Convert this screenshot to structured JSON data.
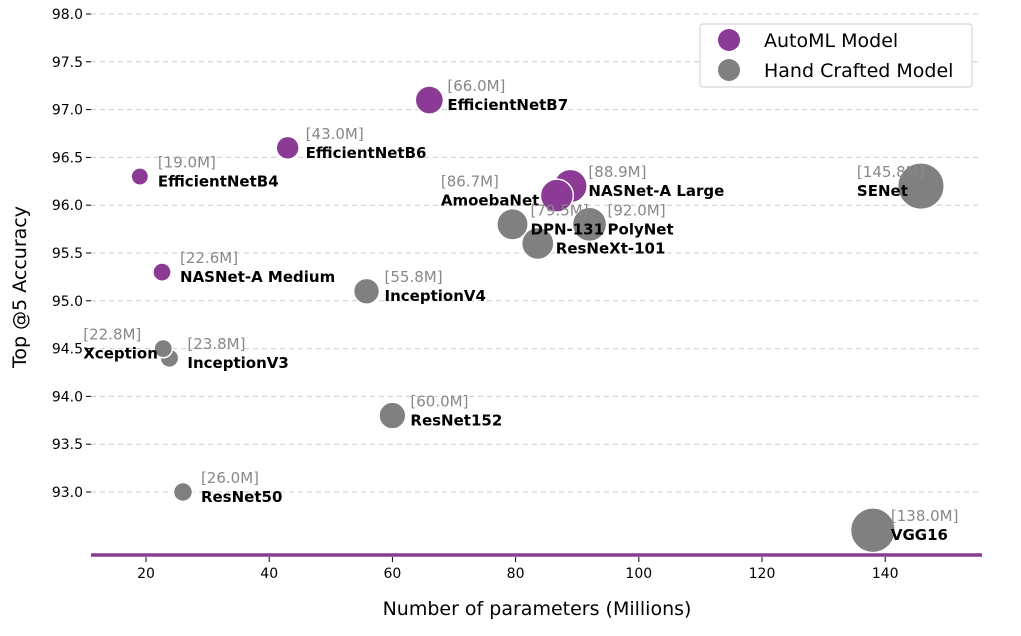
{
  "chart_data": {
    "type": "scatter",
    "xlabel": "Number of parameters (Millions)",
    "ylabel": "Top @5 Accuracy",
    "xlim": [
      10,
      155
    ],
    "ylim": [
      92.35,
      98.0
    ],
    "x_ticks": [
      20,
      40,
      60,
      80,
      100,
      120,
      140
    ],
    "y_ticks": [
      93.0,
      93.5,
      94.0,
      94.5,
      95.0,
      95.5,
      96.0,
      96.5,
      97.0,
      97.5,
      98.0
    ],
    "grid": "horizontal-dashed",
    "legend_position": "top-right",
    "colors": {
      "automl": "#8b3a96",
      "hand": "#808080",
      "baseline": "#8b3a96"
    },
    "series": [
      {
        "name": "AutoML Model",
        "points": [
          {
            "model": "EfficientNetB4",
            "params": 19.0,
            "accuracy": 96.3,
            "param_label": "[19.0M]"
          },
          {
            "model": "EfficientNetB6",
            "params": 43.0,
            "accuracy": 96.6,
            "param_label": "[43.0M]"
          },
          {
            "model": "EfficientNetB7",
            "params": 66.0,
            "accuracy": 97.1,
            "param_label": "[66.0M]"
          },
          {
            "model": "NASNet-A Medium",
            "params": 22.6,
            "accuracy": 95.3,
            "param_label": "[22.6M]"
          },
          {
            "model": "AmoebaNet",
            "params": 86.7,
            "accuracy": 96.1,
            "param_label": "[86.7M]"
          },
          {
            "model": "NASNet-A Large",
            "params": 88.9,
            "accuracy": 96.2,
            "param_label": "[88.9M]"
          }
        ]
      },
      {
        "name": "Hand Crafted Model",
        "points": [
          {
            "model": "Xception",
            "params": 22.8,
            "accuracy": 94.5,
            "param_label": "[22.8M]"
          },
          {
            "model": "InceptionV3",
            "params": 23.8,
            "accuracy": 94.4,
            "param_label": "[23.8M]"
          },
          {
            "model": "ResNet50",
            "params": 26.0,
            "accuracy": 93.0,
            "param_label": "[26.0M]"
          },
          {
            "model": "InceptionV4",
            "params": 55.8,
            "accuracy": 95.1,
            "param_label": "[55.8M]"
          },
          {
            "model": "ResNet152",
            "params": 60.0,
            "accuracy": 93.8,
            "param_label": "[60.0M]"
          },
          {
            "model": "DPN-131",
            "params": 79.5,
            "accuracy": 95.8,
            "param_label": "[79.5M]"
          },
          {
            "model": "ResNeXt-101",
            "params": 83.6,
            "accuracy": 95.6,
            "param_label": ""
          },
          {
            "model": "PolyNet",
            "params": 92.0,
            "accuracy": 95.8,
            "param_label": "[92.0M]"
          },
          {
            "model": "VGG16",
            "params": 138.0,
            "accuracy": 92.6,
            "param_label": "[138.0M]"
          },
          {
            "model": "SENet",
            "params": 145.8,
            "accuracy": 96.2,
            "param_label": "[145.8M]"
          }
        ]
      }
    ]
  }
}
